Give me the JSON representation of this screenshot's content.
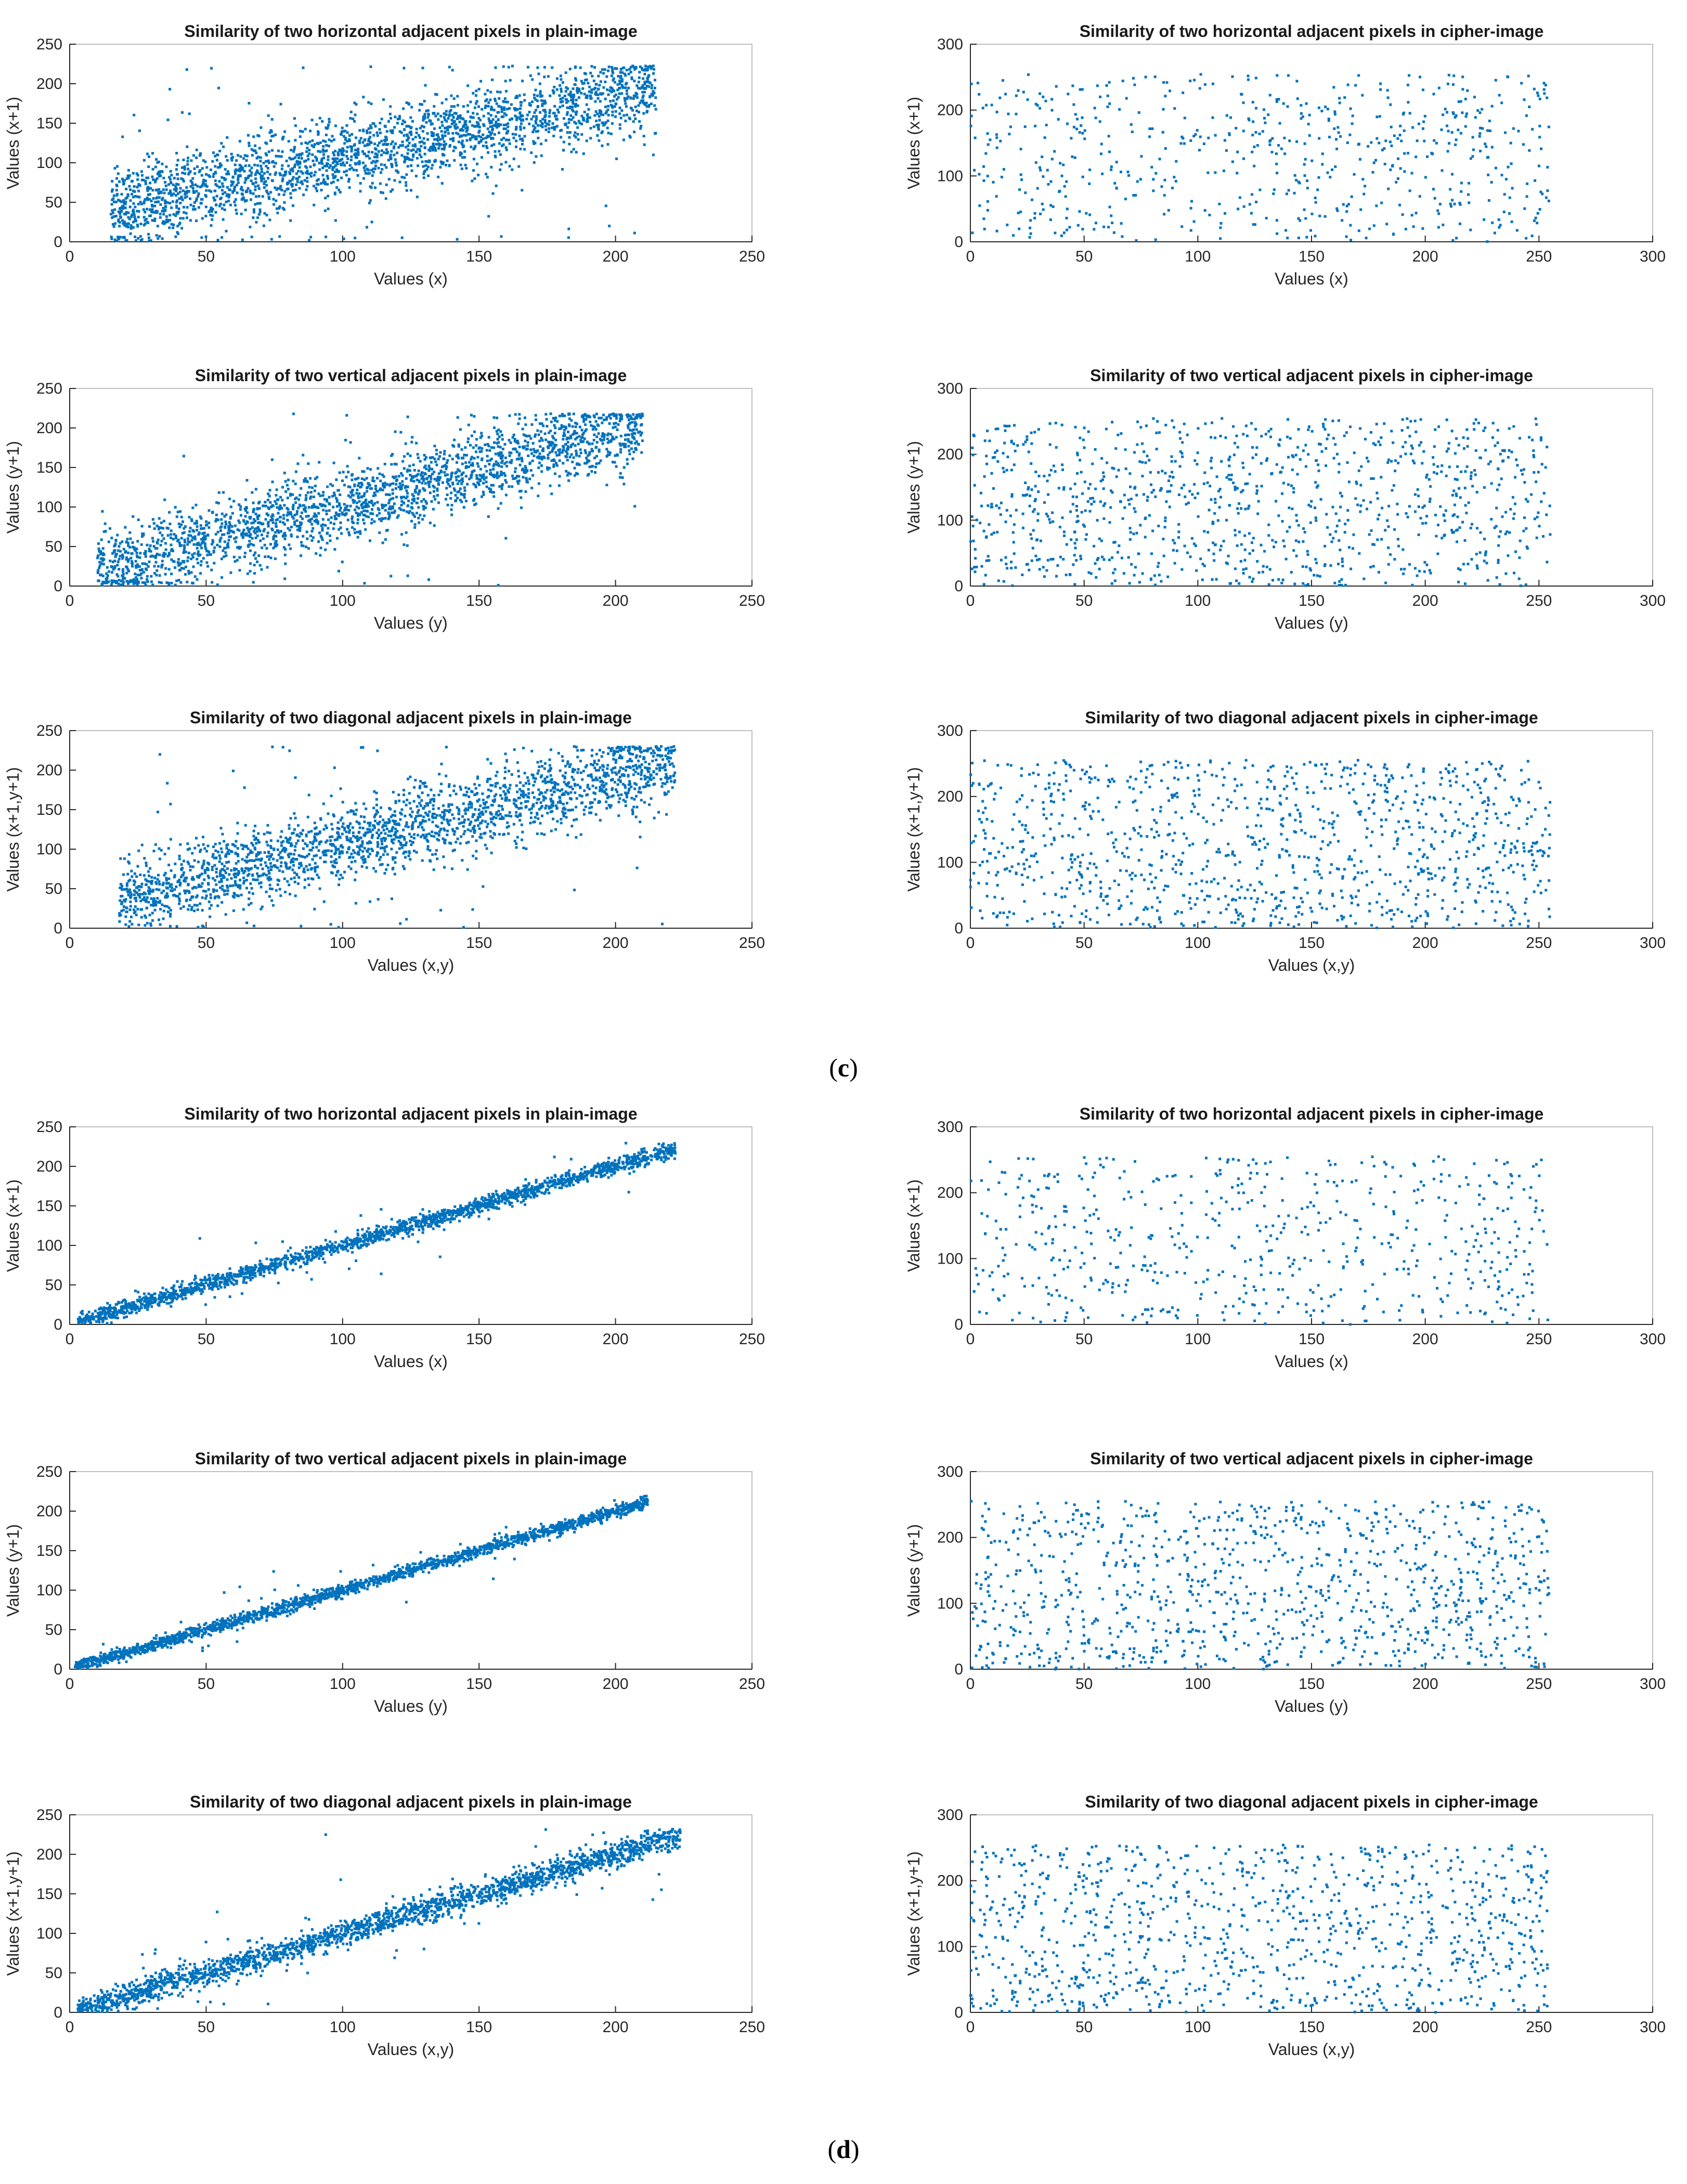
{
  "figure": {
    "captions": [
      {
        "open": "(",
        "letter": "c",
        "close": ")"
      },
      {
        "open": "(",
        "letter": "d",
        "close": ")"
      }
    ]
  },
  "style": {
    "marker_color": "#0072BD",
    "axis_color": "#262626",
    "box_color": "#bfbfbf"
  },
  "chart_data": [
    {
      "id": "c-plain-horizontal",
      "type": "scatter",
      "title": "Similarity of two horizontal adjacent pixels in plain-image",
      "xlabel": "Values (x)",
      "ylabel": "Values (x+1)",
      "xlim": [
        0,
        250
      ],
      "ylim": [
        0,
        250
      ],
      "xticks": [
        0,
        50,
        100,
        150,
        200,
        250
      ],
      "yticks": [
        0,
        50,
        100,
        150,
        200,
        250
      ],
      "n_points": 2400,
      "trend": {
        "slope": 0.78,
        "intercept": 28,
        "spread": 26
      },
      "x_range": [
        15,
        215
      ]
    },
    {
      "id": "c-cipher-horizontal",
      "type": "scatter",
      "title": "Similarity of two horizontal adjacent pixels in cipher-image",
      "xlabel": "Values (x)",
      "ylabel": "Values (x+1)",
      "xlim": [
        0,
        300
      ],
      "ylim": [
        0,
        300
      ],
      "xticks": [
        0,
        50,
        100,
        150,
        200,
        250,
        300
      ],
      "yticks": [
        0,
        100,
        200,
        300
      ],
      "n_points": 650,
      "x_range": [
        0,
        255
      ],
      "y_range": [
        0,
        255
      ]
    },
    {
      "id": "c-plain-vertical",
      "type": "scatter",
      "title": "Similarity of two vertical adjacent pixels in plain-image",
      "xlabel": "Values (y)",
      "ylabel": "Values (y+1)",
      "xlim": [
        0,
        250
      ],
      "ylim": [
        0,
        250
      ],
      "xticks": [
        0,
        50,
        100,
        150,
        200,
        250
      ],
      "yticks": [
        0,
        50,
        100,
        150,
        200,
        250
      ],
      "n_points": 2200,
      "trend": {
        "slope": 0.9,
        "intercept": 12,
        "spread": 24
      },
      "x_range": [
        10,
        210
      ]
    },
    {
      "id": "c-cipher-vertical",
      "type": "scatter",
      "title": "Similarity of two vertical adjacent pixels in cipher-image",
      "xlabel": "Values (y)",
      "ylabel": "Values (y+1)",
      "xlim": [
        0,
        300
      ],
      "ylim": [
        0,
        300
      ],
      "xticks": [
        0,
        50,
        100,
        150,
        200,
        250,
        300
      ],
      "yticks": [
        0,
        100,
        200,
        300
      ],
      "n_points": 1050,
      "x_range": [
        0,
        255
      ],
      "y_range": [
        0,
        255
      ]
    },
    {
      "id": "c-plain-diagonal",
      "type": "scatter",
      "title": "Similarity of two diagonal adjacent pixels in plain-image",
      "xlabel": "Values (x,y)",
      "ylabel": "Values (x+1,y+1)",
      "xlim": [
        0,
        250
      ],
      "ylim": [
        0,
        250
      ],
      "xticks": [
        0,
        50,
        100,
        150,
        200,
        250
      ],
      "yticks": [
        0,
        50,
        100,
        150,
        200,
        250
      ],
      "n_points": 2200,
      "trend": {
        "slope": 0.85,
        "intercept": 22,
        "spread": 24
      },
      "x_range": [
        18,
        222
      ]
    },
    {
      "id": "c-cipher-diagonal",
      "type": "scatter",
      "title": "Similarity of two diagonal adjacent pixels in cipher-image",
      "xlabel": "Values (x,y)",
      "ylabel": "Values (x+1,y+1)",
      "xlim": [
        0,
        300
      ],
      "ylim": [
        0,
        300
      ],
      "xticks": [
        0,
        50,
        100,
        150,
        200,
        250,
        300
      ],
      "yticks": [
        0,
        100,
        200,
        300
      ],
      "n_points": 1100,
      "x_range": [
        0,
        255
      ],
      "y_range": [
        0,
        255
      ]
    },
    {
      "id": "d-plain-horizontal",
      "type": "scatter",
      "title": "Similarity of two horizontal adjacent pixels in plain-image",
      "xlabel": "Values (x)",
      "ylabel": "Values (x+1)",
      "xlim": [
        0,
        250
      ],
      "ylim": [
        0,
        250
      ],
      "xticks": [
        0,
        50,
        100,
        150,
        200,
        250
      ],
      "yticks": [
        0,
        50,
        100,
        150,
        200,
        250
      ],
      "n_points": 2000,
      "trend": {
        "slope": 1.0,
        "intercept": 0,
        "spread": 5
      },
      "x_range": [
        3,
        222
      ]
    },
    {
      "id": "d-cipher-horizontal",
      "type": "scatter",
      "title": "Similarity of two horizontal adjacent pixels in cipher-image",
      "xlabel": "Values (x)",
      "ylabel": "Values (x+1)",
      "xlim": [
        0,
        300
      ],
      "ylim": [
        0,
        300
      ],
      "xticks": [
        0,
        50,
        100,
        150,
        200,
        250,
        300
      ],
      "yticks": [
        0,
        100,
        200,
        300
      ],
      "n_points": 600,
      "x_range": [
        0,
        255
      ],
      "y_range": [
        0,
        255
      ]
    },
    {
      "id": "d-plain-vertical",
      "type": "scatter",
      "title": "Similarity of two vertical adjacent pixels in plain-image",
      "xlabel": "Values (y)",
      "ylabel": "Values (y+1)",
      "xlim": [
        0,
        250
      ],
      "ylim": [
        0,
        250
      ],
      "xticks": [
        0,
        50,
        100,
        150,
        200,
        250
      ],
      "yticks": [
        0,
        50,
        100,
        150,
        200,
        250
      ],
      "n_points": 2000,
      "trend": {
        "slope": 1.0,
        "intercept": 0,
        "spread": 4
      },
      "x_range": [
        2,
        212
      ]
    },
    {
      "id": "d-cipher-vertical",
      "type": "scatter",
      "title": "Similarity of two vertical adjacent pixels in cipher-image",
      "xlabel": "Values (y)",
      "ylabel": "Values (y+1)",
      "xlim": [
        0,
        300
      ],
      "ylim": [
        0,
        300
      ],
      "xticks": [
        0,
        50,
        100,
        150,
        200,
        250,
        300
      ],
      "yticks": [
        0,
        100,
        200,
        300
      ],
      "n_points": 1050,
      "x_range": [
        0,
        255
      ],
      "y_range": [
        0,
        255
      ]
    },
    {
      "id": "d-plain-diagonal",
      "type": "scatter",
      "title": "Similarity of two diagonal adjacent pixels in plain-image",
      "xlabel": "Values (x,y)",
      "ylabel": "Values (x+1,y+1)",
      "xlim": [
        0,
        250
      ],
      "ylim": [
        0,
        250
      ],
      "xticks": [
        0,
        50,
        100,
        150,
        200,
        250
      ],
      "yticks": [
        0,
        50,
        100,
        150,
        200,
        250
      ],
      "n_points": 2200,
      "trend": {
        "slope": 1.0,
        "intercept": 0,
        "spread": 8
      },
      "x_range": [
        3,
        224
      ]
    },
    {
      "id": "d-cipher-diagonal",
      "type": "scatter",
      "title": "Similarity of two diagonal adjacent pixels in cipher-image",
      "xlabel": "Values (x,y)",
      "ylabel": "Values (x+1,y+1)",
      "xlim": [
        0,
        300
      ],
      "ylim": [
        0,
        300
      ],
      "xticks": [
        0,
        50,
        100,
        150,
        200,
        250,
        300
      ],
      "yticks": [
        0,
        100,
        200,
        300
      ],
      "n_points": 1050,
      "x_range": [
        0,
        255
      ],
      "y_range": [
        0,
        255
      ]
    }
  ]
}
